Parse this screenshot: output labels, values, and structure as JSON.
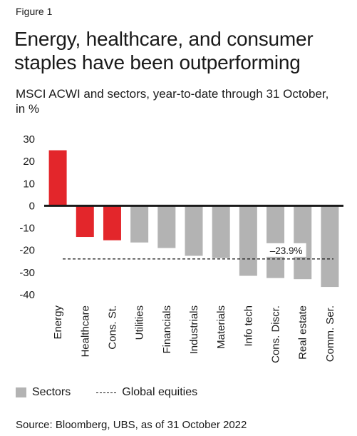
{
  "figure_label": "Figure 1",
  "title": "Energy, healthcare, and consumer staples have been outperforming",
  "subtitle": "MSCI ACWI and sectors, year-to-date through 31 October, in %",
  "legend": {
    "sectors": "Sectors",
    "global": "Global equities"
  },
  "source": "Source: Bloomberg, UBS, as of 31 October 2022",
  "chart_data": {
    "type": "bar",
    "categories": [
      "Energy",
      "Healthcare",
      "Cons. St.",
      "Utilities",
      "Financials",
      "Industrials",
      "Materials",
      "Info tech",
      "Cons. Discr.",
      "Real estate",
      "Comm. Ser."
    ],
    "values": [
      25,
      -14,
      -15.5,
      -16.5,
      -19,
      -22.5,
      -23.5,
      -31.5,
      -32.5,
      -33,
      -36.5
    ],
    "highlight": [
      true,
      true,
      true,
      false,
      false,
      false,
      false,
      false,
      false,
      false,
      false
    ],
    "ylim": [
      -40,
      30
    ],
    "yticks": [
      30,
      20,
      10,
      0,
      -10,
      -20,
      -30,
      -40
    ],
    "reference_line": {
      "value": -23.9,
      "label": "–23.9%"
    },
    "colors": {
      "highlight": "#e3262b",
      "default": "#b3b3b3",
      "line": "#1a1a1a"
    }
  }
}
